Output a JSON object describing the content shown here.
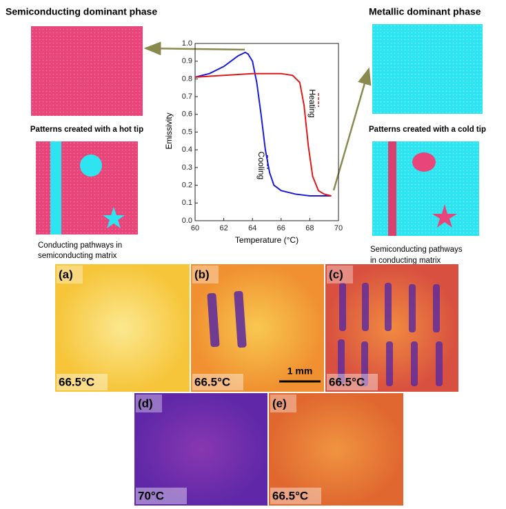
{
  "left": {
    "title": "Semiconducting dominant phase",
    "subtitle": "Patterns created with a hot tip",
    "caption": [
      "Conducting pathways in",
      "semiconducting matrix"
    ]
  },
  "right": {
    "title": "Metallic dominant phase",
    "subtitle": "Patterns created with a cold tip",
    "caption": [
      "Semiconducting    pathways",
      "in conducting matrix"
    ]
  },
  "chart_data": {
    "type": "line",
    "xlabel": "Temperature (°C)",
    "ylabel": "Emissivity",
    "xlim": [
      60,
      70
    ],
    "xticks": [
      60,
      62,
      64,
      66,
      68,
      70
    ],
    "ylim": [
      0,
      1.0
    ],
    "yticks": [
      {
        "value": 0,
        "label": "0.0"
      },
      0.1,
      0.2,
      0.3,
      0.4,
      0.5,
      0.6,
      0.7,
      0.8,
      0.9,
      {
        "value": 1.0,
        "label": "1.0"
      }
    ],
    "series": [
      {
        "name": "Cooling",
        "color": "#1a1adc",
        "x": [
          69.5,
          68,
          67,
          66,
          65.5,
          65.2,
          64.9,
          64.6,
          64.3,
          64,
          63.7,
          63.5,
          63,
          62.5,
          62,
          61,
          60
        ],
        "values": [
          0.14,
          0.14,
          0.15,
          0.17,
          0.2,
          0.27,
          0.4,
          0.6,
          0.78,
          0.9,
          0.94,
          0.95,
          0.93,
          0.9,
          0.87,
          0.83,
          0.81
        ]
      },
      {
        "name": "Heating",
        "color": "#e01818",
        "x": [
          60,
          62,
          64,
          66,
          66.8,
          67.3,
          67.6,
          67.9,
          68.2,
          68.6,
          69,
          69.5
        ],
        "values": [
          0.81,
          0.82,
          0.83,
          0.83,
          0.82,
          0.78,
          0.65,
          0.42,
          0.25,
          0.17,
          0.15,
          0.14
        ]
      }
    ]
  },
  "panels": [
    {
      "label": "(a)",
      "temp": "66.5°C"
    },
    {
      "label": "(b)",
      "temp": "66.5°C"
    },
    {
      "label": "(c)",
      "temp": "66.5°C"
    },
    {
      "label": "(d)",
      "temp": "70°C"
    },
    {
      "label": "(e)",
      "temp": "66.5°C"
    }
  ],
  "scale_bar": "1 mm"
}
